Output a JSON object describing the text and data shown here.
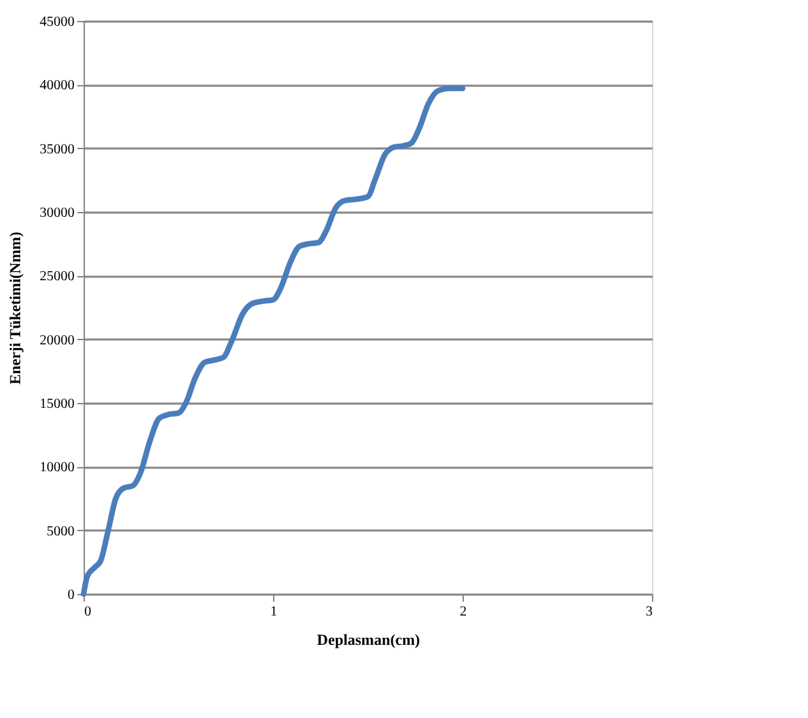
{
  "chart_data": {
    "type": "line",
    "xlabel": "Deplasman(cm)",
    "ylabel": "Enerji Tüketimi(Nmm)",
    "x": [
      0,
      0.02,
      0.06,
      0.09,
      0.13,
      0.17,
      0.21,
      0.26,
      0.3,
      0.35,
      0.4,
      0.45,
      0.5,
      0.54,
      0.59,
      0.64,
      0.7,
      0.74,
      0.78,
      0.84,
      0.89,
      0.95,
      1.0,
      1.04,
      1.09,
      1.14,
      1.19,
      1.24,
      1.28,
      1.33,
      1.38,
      1.44,
      1.5,
      1.54,
      1.59,
      1.64,
      1.69,
      1.73,
      1.77,
      1.82,
      1.87,
      1.93,
      2.0
    ],
    "series": [
      {
        "color": "#4a7ebb",
        "values": [
          0,
          1400,
          2100,
          2600,
          5000,
          7500,
          8300,
          8500,
          9500,
          12000,
          13800,
          14100,
          14200,
          15000,
          17000,
          18200,
          18400,
          18600,
          19800,
          22000,
          22800,
          23000,
          23100,
          24000,
          26000,
          27300,
          27500,
          27600,
          28500,
          30300,
          30900,
          31000,
          31200,
          32600,
          34500,
          35100,
          35200,
          35400,
          36500,
          38500,
          39500,
          39700,
          39700
        ]
      }
    ],
    "xlim": [
      0,
      3
    ],
    "xticks": [
      0,
      1,
      2,
      3
    ],
    "ylim": [
      0,
      45000
    ],
    "yticks": [
      0,
      5000,
      10000,
      15000,
      20000,
      25000,
      30000,
      35000,
      40000,
      45000
    ],
    "grid": "y",
    "legend": false,
    "marker": "none",
    "line_style": "solid"
  }
}
